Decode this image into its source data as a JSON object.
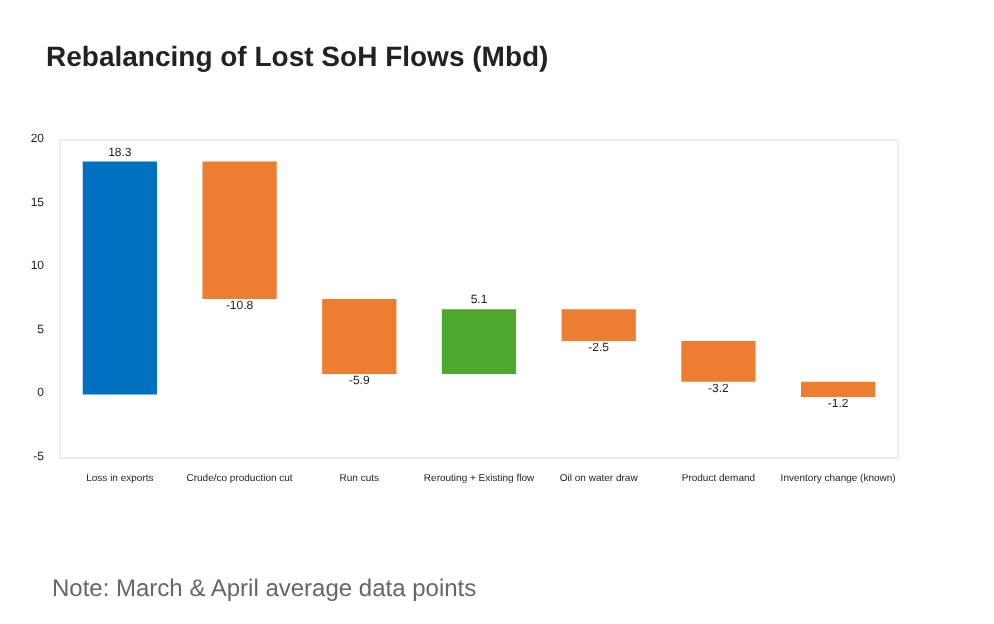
{
  "chart_data": {
    "type": "bar",
    "title": "Rebalancing of Lost SoH Flows (Mbd)",
    "categories": [
      "Loss in exports",
      "Crude/co production cut",
      "Run cuts",
      "Rerouting + Existing flow",
      "Oil on water draw",
      "Product demand",
      "Inventory change (known)"
    ],
    "values": [
      18.3,
      -10.8,
      -5.9,
      5.1,
      -2.5,
      -3.2,
      -1.2
    ],
    "base": [
      0,
      18.3,
      7.5,
      1.6,
      6.7,
      4.2,
      1.0
    ],
    "colors": [
      "#0070c0",
      "#ed7d31",
      "#ed7d31",
      "#4ea72e",
      "#ed7d31",
      "#ed7d31",
      "#ed7d31"
    ],
    "ylim": [
      -5,
      20
    ],
    "yticks": [
      -5,
      0,
      5,
      10,
      15,
      20
    ],
    "grid": false,
    "data_labels": true,
    "annotations": [
      "Note: March & April average data points"
    ]
  }
}
